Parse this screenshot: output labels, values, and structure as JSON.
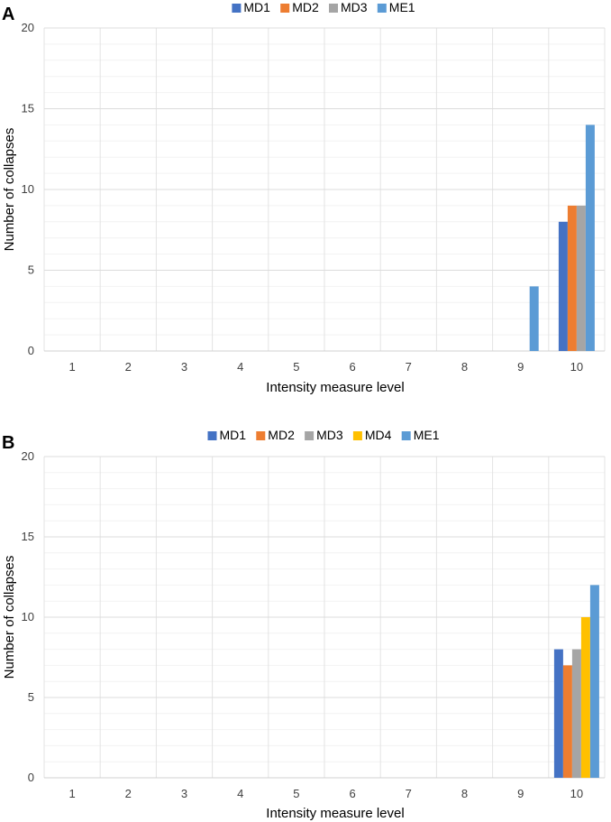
{
  "chart_data": [
    {
      "panel_label": "A",
      "type": "bar",
      "categories": [
        "1",
        "2",
        "3",
        "4",
        "5",
        "6",
        "7",
        "8",
        "9",
        "10"
      ],
      "series": [
        {
          "name": "MD1",
          "color": "#4472c4",
          "values": [
            0,
            0,
            0,
            0,
            0,
            0,
            0,
            0,
            0,
            8
          ]
        },
        {
          "name": "MD2",
          "color": "#ed7d31",
          "values": [
            0,
            0,
            0,
            0,
            0,
            0,
            0,
            0,
            0,
            9
          ]
        },
        {
          "name": "MD3",
          "color": "#a5a5a5",
          "values": [
            0,
            0,
            0,
            0,
            0,
            0,
            0,
            0,
            0,
            9
          ]
        },
        {
          "name": "ME1",
          "color": "#5b9bd5",
          "values": [
            0,
            0,
            0,
            0,
            0,
            0,
            0,
            0,
            4,
            14
          ]
        }
      ],
      "xlabel": "Intensity measure level",
      "ylabel": "Number of collapses",
      "ylim": [
        0,
        20
      ],
      "yticks": [
        "0",
        "5",
        "10",
        "15",
        "20"
      ],
      "grid": true,
      "legend": "top-center"
    },
    {
      "panel_label": "B",
      "type": "bar",
      "categories": [
        "1",
        "2",
        "3",
        "4",
        "5",
        "6",
        "7",
        "8",
        "9",
        "10"
      ],
      "series": [
        {
          "name": "MD1",
          "color": "#4472c4",
          "values": [
            0,
            0,
            0,
            0,
            0,
            0,
            0,
            0,
            0,
            8
          ]
        },
        {
          "name": "MD2",
          "color": "#ed7d31",
          "values": [
            0,
            0,
            0,
            0,
            0,
            0,
            0,
            0,
            0,
            7
          ]
        },
        {
          "name": "MD3",
          "color": "#a5a5a5",
          "values": [
            0,
            0,
            0,
            0,
            0,
            0,
            0,
            0,
            0,
            8
          ]
        },
        {
          "name": "MD4",
          "color": "#ffc000",
          "values": [
            0,
            0,
            0,
            0,
            0,
            0,
            0,
            0,
            0,
            10
          ]
        },
        {
          "name": "ME1",
          "color": "#5b9bd5",
          "values": [
            0,
            0,
            0,
            0,
            0,
            0,
            0,
            0,
            0,
            12
          ]
        }
      ],
      "xlabel": "Intensity measure level",
      "ylabel": "Number of collapses",
      "ylim": [
        0,
        20
      ],
      "yticks": [
        "0",
        "5",
        "10",
        "15",
        "20"
      ],
      "grid": true,
      "legend": "top-center"
    }
  ]
}
